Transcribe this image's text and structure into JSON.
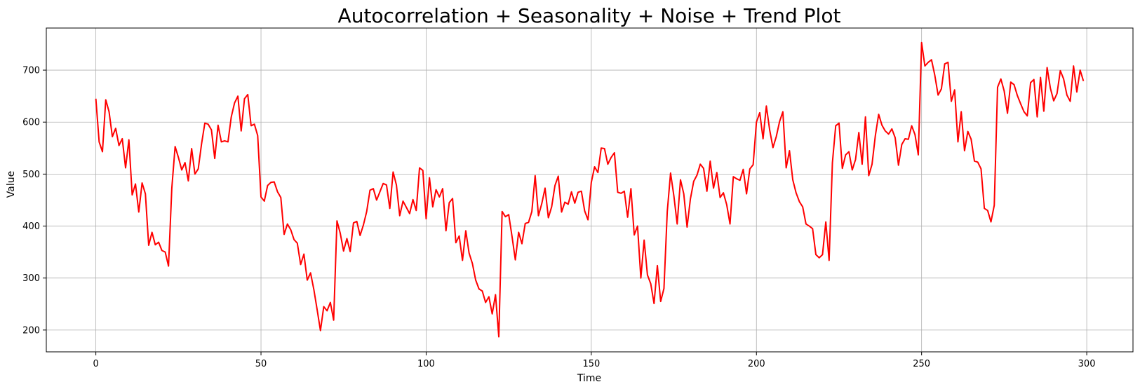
{
  "chart_data": {
    "type": "line",
    "title": "Autocorrelation + Seasonality + Noise + Trend Plot",
    "xlabel": "Time",
    "ylabel": "Value",
    "xlim": [
      -15,
      314
    ],
    "ylim": [
      158,
      781
    ],
    "xticks": [
      0,
      50,
      100,
      150,
      200,
      250,
      300
    ],
    "yticks": [
      200,
      300,
      400,
      500,
      600,
      700
    ],
    "grid": true,
    "series": [
      {
        "color": "#ff0000",
        "x_start": 0,
        "values": [
          645,
          562,
          543,
          643,
          620,
          572,
          588,
          555,
          568,
          512,
          566,
          460,
          481,
          427,
          483,
          462,
          363,
          388,
          364,
          369,
          353,
          350,
          323,
          473,
          553,
          532,
          508,
          522,
          487,
          549,
          500,
          510,
          558,
          598,
          596,
          585,
          530,
          594,
          562,
          564,
          562,
          610,
          637,
          650,
          583,
          645,
          653,
          593,
          596,
          574,
          456,
          448,
          478,
          484,
          485,
          466,
          455,
          384,
          404,
          393,
          374,
          367,
          326,
          346,
          296,
          310,
          278,
          239,
          199,
          245,
          237,
          253,
          219,
          410,
          386,
          352,
          376,
          351,
          406,
          409,
          382,
          402,
          428,
          469,
          472,
          450,
          466,
          482,
          479,
          434,
          504,
          479,
          420,
          448,
          436,
          424,
          451,
          430,
          512,
          507,
          414,
          493,
          437,
          470,
          456,
          472,
          391,
          445,
          453,
          368,
          381,
          334,
          391,
          348,
          328,
          296,
          279,
          275,
          253,
          264,
          231,
          268,
          187,
          428,
          418,
          422,
          380,
          335,
          388,
          366,
          405,
          407,
          428,
          497,
          420,
          443,
          473,
          416,
          437,
          478,
          496,
          427,
          446,
          442,
          466,
          444,
          465,
          467,
          429,
          412,
          484,
          514,
          503,
          550,
          549,
          519,
          532,
          541,
          465,
          463,
          467,
          417,
          472,
          383,
          400,
          300,
          373,
          306,
          289,
          251,
          324,
          255,
          280,
          428,
          502,
          458,
          404,
          489,
          462,
          398,
          452,
          486,
          498,
          519,
          511,
          467,
          525,
          473,
          503,
          455,
          464,
          441,
          404,
          495,
          491,
          488,
          509,
          462,
          510,
          518,
          600,
          618,
          568,
          631,
          585,
          551,
          572,
          601,
          620,
          512,
          545,
          489,
          464,
          447,
          437,
          404,
          400,
          395,
          345,
          339,
          345,
          408,
          334,
          522,
          593,
          598,
          511,
          537,
          543,
          508,
          528,
          580,
          519,
          610,
          497,
          519,
          574,
          615,
          594,
          583,
          577,
          587,
          570,
          517,
          557,
          568,
          567,
          593,
          576,
          537,
          753,
          708,
          715,
          720,
          690,
          652,
          664,
          712,
          715,
          640,
          662,
          562,
          620,
          545,
          582,
          567,
          525,
          523,
          510,
          434,
          430,
          408,
          440,
          667,
          683,
          660,
          617,
          677,
          672,
          651,
          635,
          620,
          612,
          676,
          682,
          610,
          686,
          621,
          705,
          665,
          641,
          655,
          699,
          683,
          652,
          640,
          708,
          658,
          700,
          679
        ]
      }
    ]
  }
}
